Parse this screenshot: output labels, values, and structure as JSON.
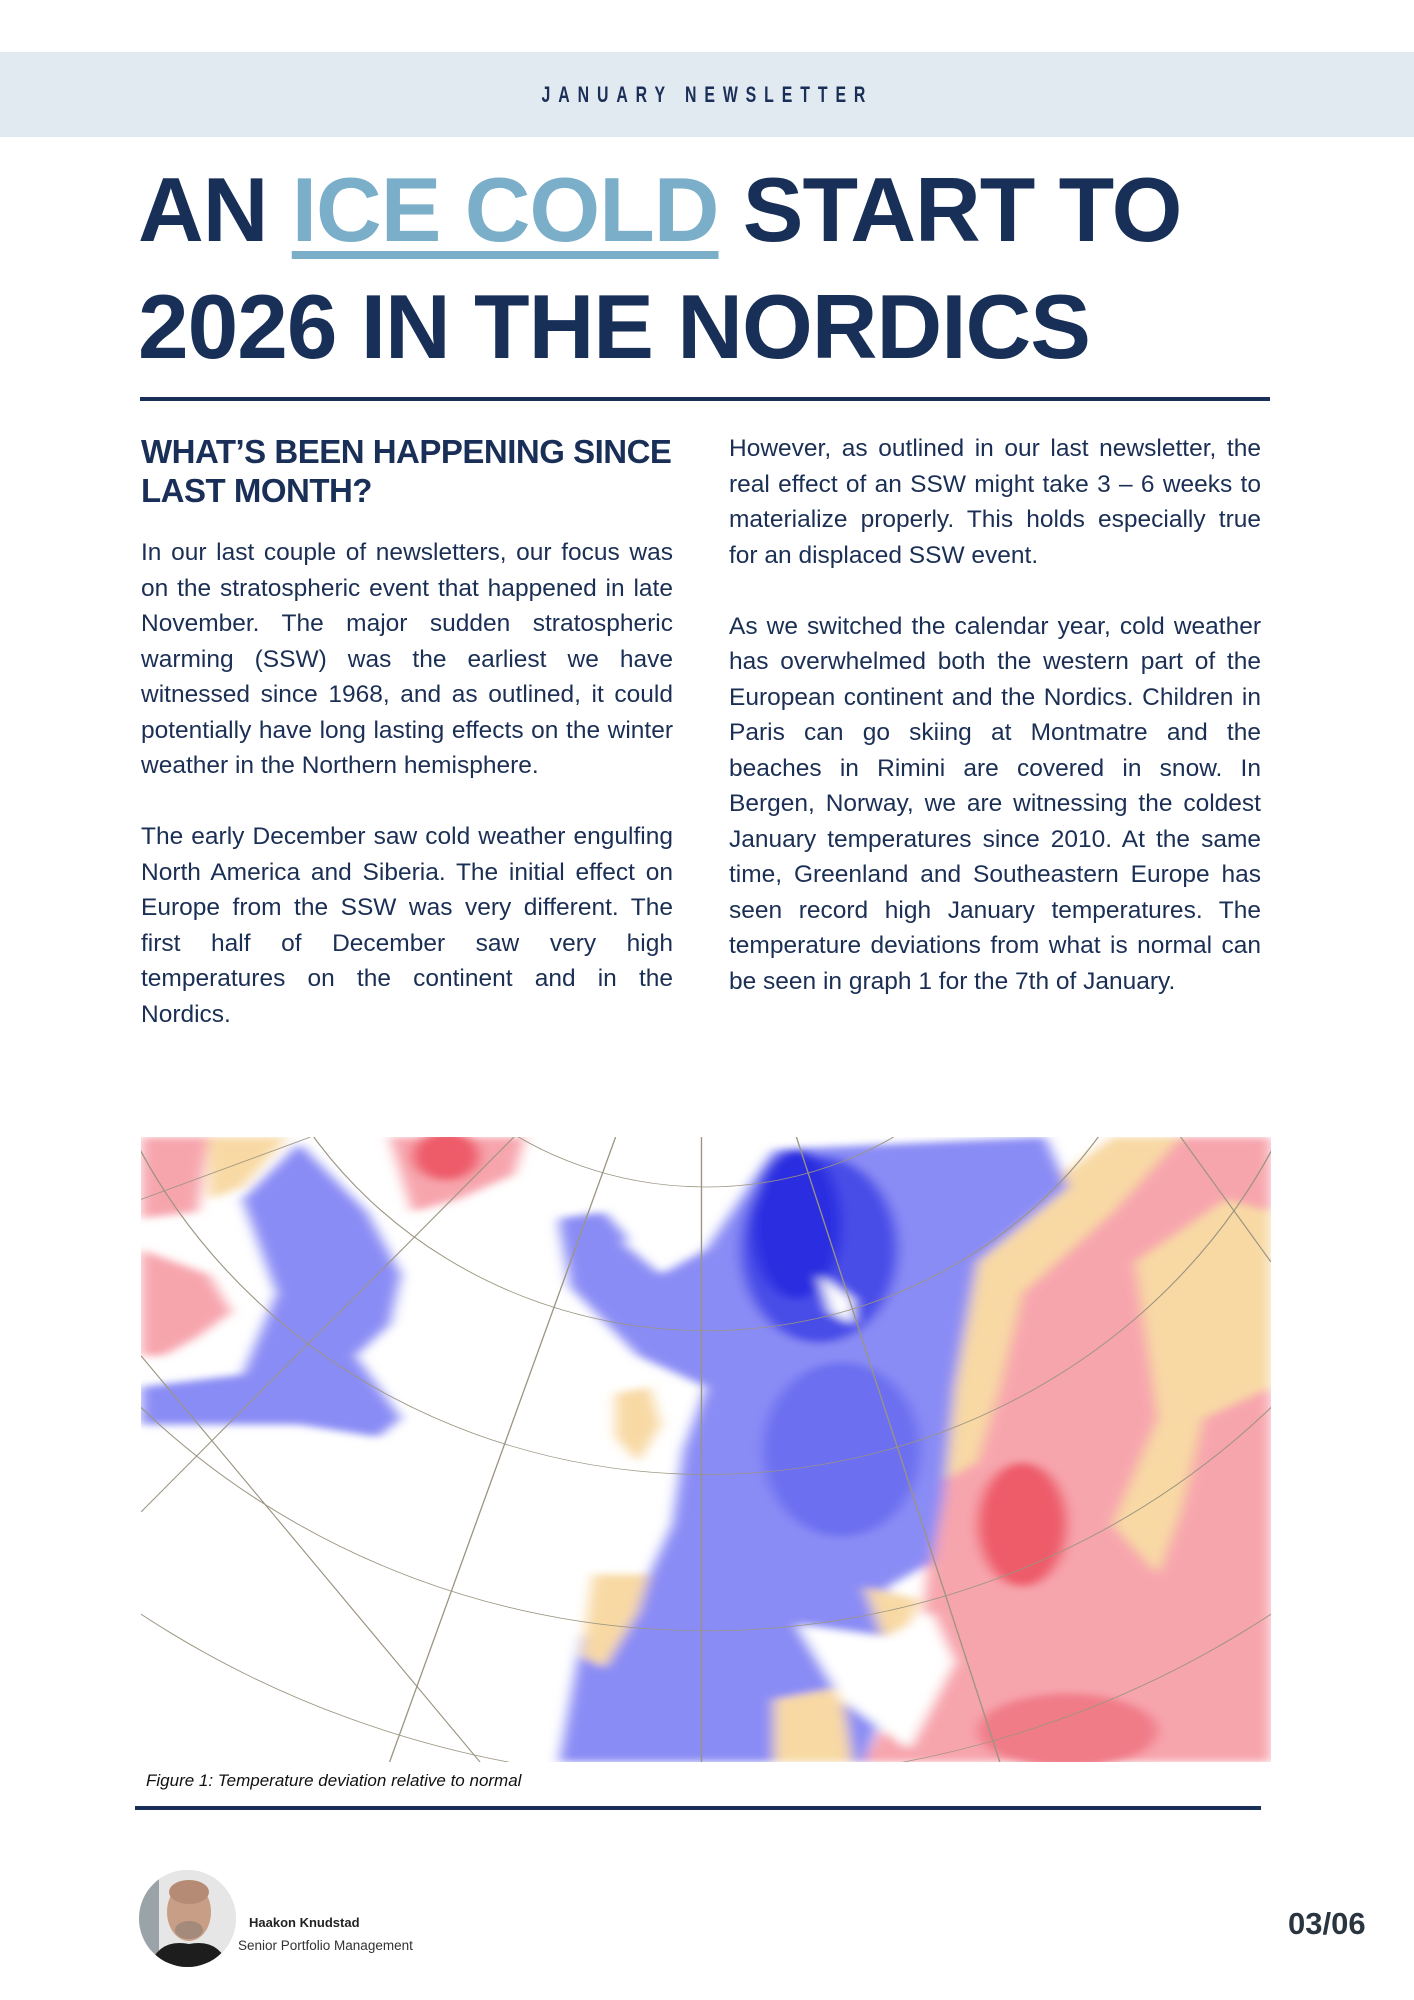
{
  "header": {
    "label": "JANUARY NEWSLETTER"
  },
  "title": {
    "part1": "AN ",
    "accent": "ICE COLD",
    "part2": " START TO",
    "line2": "2026 IN THE NORDICS"
  },
  "section": {
    "heading": "WHAT’S BEEN HAPPENING SINCE LAST MONTH?",
    "left_paragraphs": [
      "In our last couple of newsletters, our focus was on the stratospheric event that happened in late November. The major sudden stratospheric warming (SSW) was the earliest we have witnessed since 1968, and as outlined, it could potentially have long lasting effects on the winter weather in the Northern hemisphere.",
      "The early December saw cold weather engulfing North America and Siberia. The initial effect on Europe from the SSW was very different. The first half of December saw very high temperatures on the continent and in the Nordics."
    ],
    "right_paragraphs": [
      "However, as outlined in our last newsletter, the real effect of an SSW might take 3 – 6 weeks to materialize properly. This holds especially true for an displaced SSW event.",
      "As we switched the calendar year, cold weather has overwhelmed both the western part of the European continent and the Nordics. Children in Paris can go skiing at Montmatre and the beaches in Rimini are covered in snow. In Bergen, Norway, we are witnessing the coldest January temperatures since 2010. At the same time, Greenland and Southeastern Europe has seen record high January temperatures. The temperature deviations from what is normal can be seen in graph 1 for the 7th of January."
    ]
  },
  "figure": {
    "caption": "Figure 1: Temperature deviation relative to normal",
    "colors": {
      "cold": "#8a8cf5",
      "very_cold": "#2a2de0",
      "warm": "#f7a5ad",
      "very_warm": "#ee4c5e",
      "neutral": "#f8d9a4"
    }
  },
  "footer": {
    "name": "Haakon Knudstad",
    "role": "Senior Portfolio Management",
    "page": "03/06"
  },
  "colors": {
    "navy": "#1a2f57",
    "accent": "#7aaec9",
    "band": "#e1e9f1"
  }
}
